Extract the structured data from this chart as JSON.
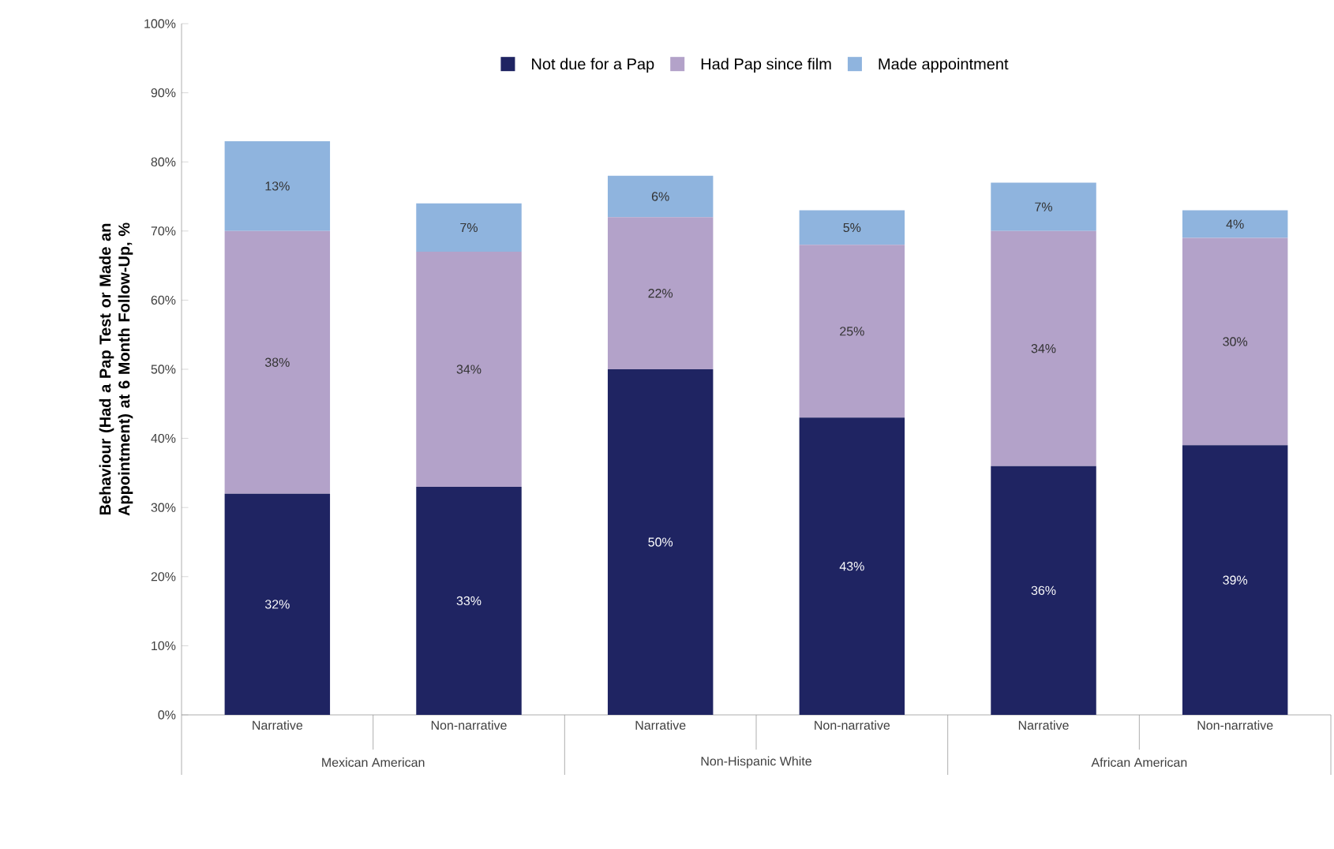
{
  "chart_data": {
    "type": "bar",
    "stacked": true,
    "ylabel": "Behaviour (Had a Pap Test or Made an Appointment) at 6 Month Follow-Up, %",
    "categories": [
      "Narrative",
      "Non-narrative",
      "Narrative",
      "Non-narrative",
      "Narrative",
      "Non-narrative"
    ],
    "annotations": [
      "Mexican American",
      "Non-Hispanic White",
      "African American"
    ],
    "series": [
      {
        "name": "Not due for a Pap",
        "color": "#1f2462",
        "values": [
          32,
          33,
          50,
          43,
          36,
          39
        ],
        "value_labels": [
          "32%",
          "33%",
          "50%",
          "43%",
          "36%",
          "39%"
        ]
      },
      {
        "name": "Had Pap since film",
        "color": "#b3a2c9",
        "values": [
          38,
          34,
          22,
          25,
          34,
          30
        ],
        "value_labels": [
          "38%",
          "34%",
          "22%",
          "25%",
          "34%",
          "30%"
        ]
      },
      {
        "name": "Made appointment",
        "color": "#8fb4de",
        "values": [
          13,
          7,
          6,
          5,
          7,
          4
        ],
        "value_labels": [
          "13%",
          "7%",
          "6%",
          "5%",
          "7%",
          "4%"
        ]
      }
    ],
    "ylim": [
      0,
      100
    ],
    "yticks": [
      {
        "value": 0,
        "label": "0%"
      },
      {
        "value": 10,
        "label": "10%"
      },
      {
        "value": 20,
        "label": "20%"
      },
      {
        "value": 30,
        "label": "30%"
      },
      {
        "value": 40,
        "label": "40%"
      },
      {
        "value": 50,
        "label": "50%"
      },
      {
        "value": 60,
        "label": "60%"
      },
      {
        "value": 70,
        "label": "70%"
      },
      {
        "value": 80,
        "label": "80%"
      },
      {
        "value": 90,
        "label": "90%"
      },
      {
        "value": 100,
        "label": "100%"
      }
    ],
    "legend": "top",
    "grid": false
  }
}
